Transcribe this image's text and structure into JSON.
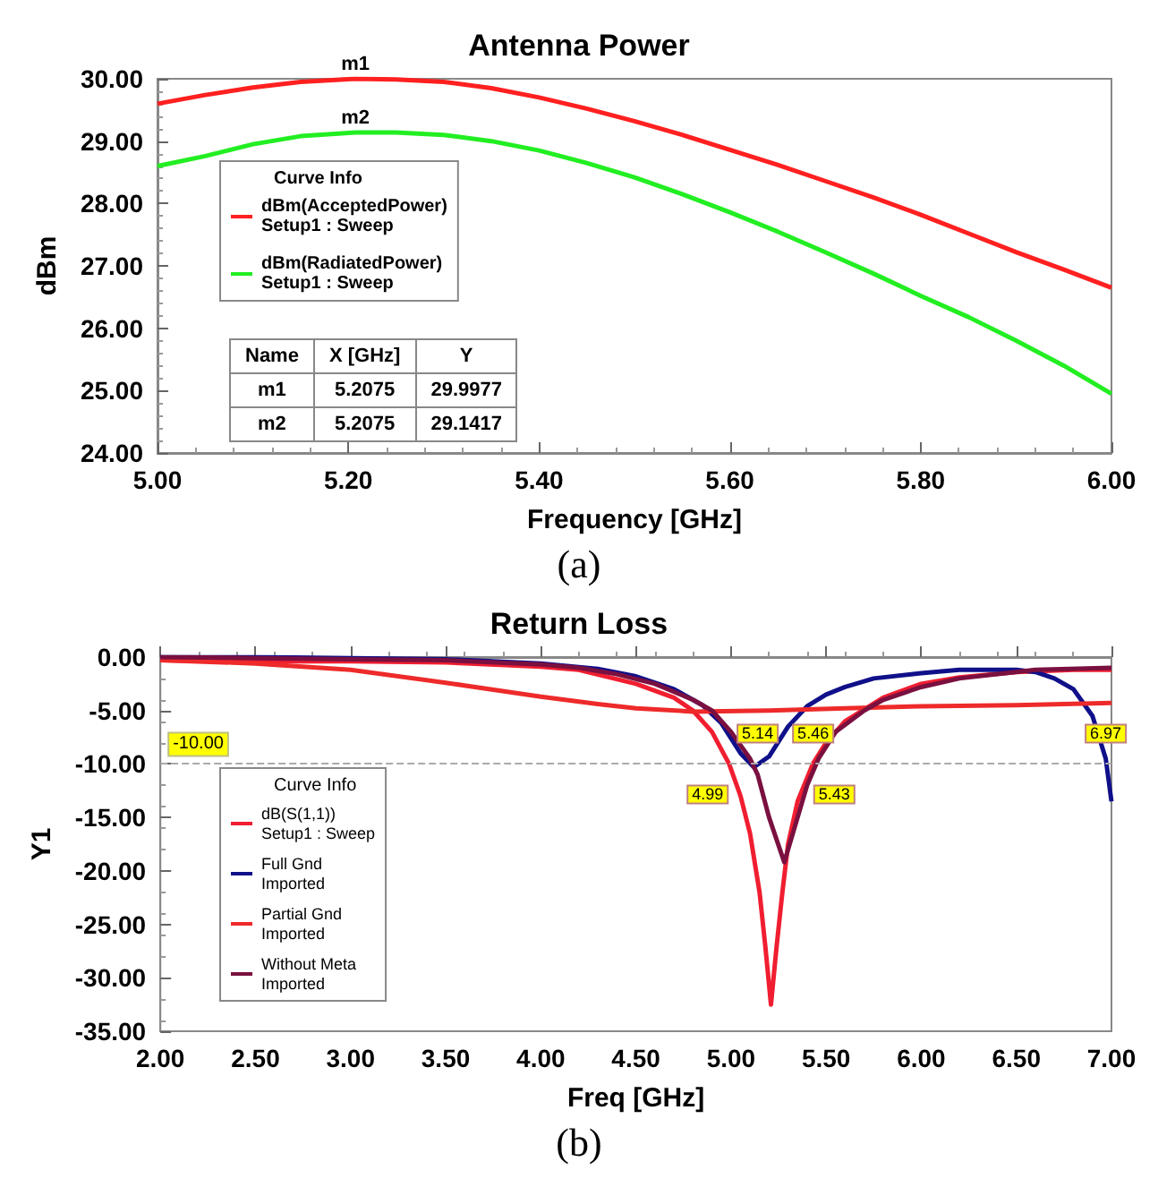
{
  "chart_data": [
    {
      "type": "line",
      "title": "Antenna Power",
      "xlabel": "Frequency [GHz]",
      "ylabel": "dBm",
      "legend_title": "Curve Info",
      "legend": "left",
      "grid": false,
      "xlim": [
        5,
        6
      ],
      "xticks": [
        {
          "value": 5,
          "label": "5.00"
        },
        {
          "value": 5.2,
          "label": "5.20"
        },
        {
          "value": 5.4,
          "label": "5.40"
        },
        {
          "value": 5.6,
          "label": "5.60"
        },
        {
          "value": 5.8,
          "label": "5.80"
        },
        {
          "value": 6,
          "label": "6.00"
        }
      ],
      "ylim": [
        24,
        30
      ],
      "yticks": [
        {
          "value": 24,
          "label": "24.00"
        },
        {
          "value": 25,
          "label": "25.00"
        },
        {
          "value": 26,
          "label": "26.00"
        },
        {
          "value": 27,
          "label": "27.00"
        },
        {
          "value": 28,
          "label": "28.00"
        },
        {
          "value": 29,
          "label": "29.00"
        },
        {
          "value": 30,
          "label": "30.00"
        }
      ],
      "x": [
        5,
        5.05,
        5.1,
        5.15,
        5.2075,
        5.25,
        5.3,
        5.35,
        5.4,
        5.45,
        5.5,
        5.55,
        5.6,
        5.65,
        5.7,
        5.75,
        5.8,
        5.85,
        5.9,
        5.95,
        6
      ],
      "series": [
        {
          "name": "dBm(AcceptedPower)\nSetup1 : Sweep",
          "color": "#ff2020",
          "values": [
            29.6,
            29.74,
            29.86,
            29.95,
            30,
            29.99,
            29.95,
            29.85,
            29.7,
            29.52,
            29.32,
            29.1,
            28.86,
            28.62,
            28.36,
            28.1,
            27.82,
            27.52,
            27.22,
            26.94,
            26.65
          ]
        },
        {
          "name": "dBm(RadiatedPower)\nSetup1 : Sweep",
          "color": "#22ee22",
          "values": [
            28.6,
            28.76,
            28.95,
            29.08,
            29.14,
            29.14,
            29.1,
            29,
            28.85,
            28.65,
            28.42,
            28.15,
            27.86,
            27.55,
            27.22,
            26.88,
            26.52,
            26.18,
            25.8,
            25.4,
            24.95
          ]
        }
      ],
      "annotations": [
        {
          "text": "m1",
          "x": 5.2075,
          "y": 29.9977
        },
        {
          "text": "m2",
          "x": 5.2075,
          "y": 29.1417
        },
        "Name",
        "X [GHz]",
        "Y",
        "m1",
        "5.2075",
        "29.9977",
        "m2",
        "5.2075",
        "29.1417",
        "(a)"
      ]
    },
    {
      "type": "line",
      "title": "Return Loss",
      "xlabel": "Freq [GHz]",
      "ylabel": "Y1",
      "legend_title": "Curve Info",
      "legend": "left",
      "grid": false,
      "xlim": [
        2,
        7
      ],
      "xticks": [
        {
          "value": 2,
          "label": "2.00"
        },
        {
          "value": 2.5,
          "label": "2.50"
        },
        {
          "value": 3,
          "label": "3.00"
        },
        {
          "value": 3.5,
          "label": "3.50"
        },
        {
          "value": 4,
          "label": "4.00"
        },
        {
          "value": 4.5,
          "label": "4.50"
        },
        {
          "value": 5,
          "label": "5.00"
        },
        {
          "value": 5.5,
          "label": "5.50"
        },
        {
          "value": 6,
          "label": "6.00"
        },
        {
          "value": 6.5,
          "label": "6.50"
        },
        {
          "value": 7,
          "label": "7.00"
        }
      ],
      "ylim": [
        -35,
        0
      ],
      "yticks": [
        {
          "value": -35,
          "label": "-35.00"
        },
        {
          "value": -30,
          "label": "-30.00"
        },
        {
          "value": -25,
          "label": "-25.00"
        },
        {
          "value": -20,
          "label": "-20.00"
        },
        {
          "value": -15,
          "label": "-15.00"
        },
        {
          "value": -10,
          "label": "-10.00"
        },
        {
          "value": -5,
          "label": "-5.00"
        },
        {
          "value": 0,
          "label": "0.00"
        }
      ],
      "ref_lines": [
        {
          "axis": "y",
          "value": -10,
          "label": "-10.00",
          "color": "#aaaaaa",
          "line_style": "dashed"
        }
      ],
      "series": [
        {
          "name": "dB(S(1,1))\nSetup1 : Sweep",
          "color": "#f01e30",
          "x": [
            2,
            2.5,
            3,
            3.5,
            4,
            4.2,
            4.5,
            4.7,
            4.8,
            4.9,
            4.99,
            5.05,
            5.1,
            5.15,
            5.18,
            5.21,
            5.24,
            5.27,
            5.3,
            5.35,
            5.43,
            5.5,
            5.6,
            5.8,
            6,
            6.2,
            6.5,
            6.8,
            7
          ],
          "values": [
            -0.3,
            -0.4,
            -0.4,
            -0.5,
            -0.9,
            -1.2,
            -2.5,
            -3.8,
            -5,
            -7,
            -10,
            -13,
            -16.5,
            -22,
            -27,
            -32.5,
            -27,
            -22,
            -17.5,
            -13.5,
            -10,
            -8,
            -6,
            -3.8,
            -2.5,
            -1.9,
            -1.4,
            -1.2,
            -1.2
          ]
        },
        {
          "name": "Full Gnd\nImported",
          "color": "#10108a",
          "x": [
            2,
            2.5,
            3,
            3.5,
            4,
            4.3,
            4.5,
            4.7,
            4.85,
            4.95,
            5.05,
            5.12,
            5.2,
            5.3,
            5.4,
            5.5,
            5.6,
            5.75,
            6,
            6.2,
            6.5,
            6.6,
            6.7,
            6.8,
            6.9,
            6.97,
            7
          ],
          "values": [
            0,
            0,
            -0.1,
            -0.2,
            -0.6,
            -1.1,
            -1.8,
            -3,
            -4.5,
            -6.2,
            -9,
            -10.3,
            -9.3,
            -6.5,
            -4.6,
            -3.5,
            -2.8,
            -2,
            -1.5,
            -1.2,
            -1.2,
            -1.4,
            -2,
            -3,
            -5.5,
            -9.5,
            -13.5
          ]
        },
        {
          "name": "Partial Gnd\nImported",
          "color": "#ee2a2a",
          "x": [
            2,
            2.5,
            3,
            3.5,
            4,
            4.3,
            4.5,
            4.8,
            5.2,
            5.6,
            6,
            6.5,
            7
          ],
          "values": [
            -0.3,
            -0.6,
            -1.2,
            -2.4,
            -3.7,
            -4.4,
            -4.8,
            -5.1,
            -5,
            -4.8,
            -4.6,
            -4.5,
            -4.3
          ]
        },
        {
          "name": "Without Meta\nImported",
          "color": "#7a1040",
          "x": [
            2,
            2.5,
            3,
            3.5,
            4,
            4.2,
            4.4,
            4.6,
            4.8,
            4.9,
            5,
            5.1,
            5.14,
            5.2,
            5.28,
            5.35,
            5.4,
            5.46,
            5.55,
            5.7,
            5.8,
            6,
            6.2,
            6.6,
            7
          ],
          "values": [
            0,
            -0.1,
            -0.2,
            -0.3,
            -0.7,
            -1,
            -1.6,
            -2.5,
            -4,
            -5,
            -7,
            -9.5,
            -11,
            -15,
            -19.2,
            -15,
            -12,
            -9.5,
            -7,
            -5,
            -4,
            -2.8,
            -2,
            -1.2,
            -1
          ]
        }
      ],
      "annotations": [
        {
          "text": "4.99",
          "x": 4.99,
          "y": -10
        },
        {
          "text": "5.14",
          "x": 5.14,
          "y": -10
        },
        {
          "text": "5.46",
          "x": 5.46,
          "y": -10
        },
        {
          "text": "5.43",
          "x": 5.43,
          "y": -10
        },
        {
          "text": "6.97",
          "x": 6.97,
          "y": -10
        },
        "(b)"
      ]
    }
  ]
}
